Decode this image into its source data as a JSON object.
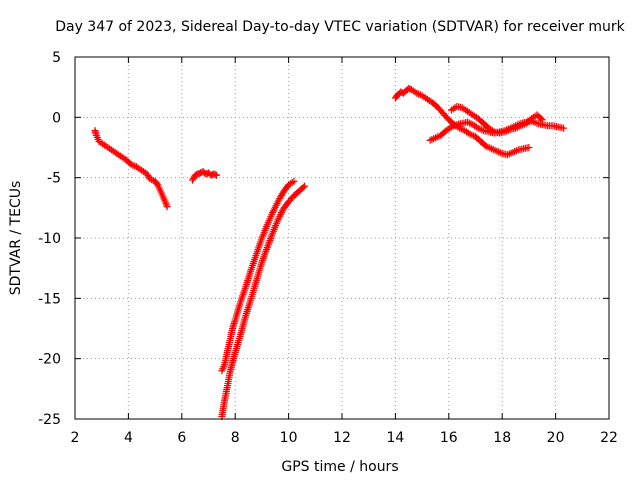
{
  "chart_data": {
    "type": "scatter",
    "title": "Day 347 of 2023, Sidereal Day-to-day VTEC variation (SDTVAR) for receiver murk",
    "xlabel": "GPS time / hours",
    "ylabel": "SDTVAR / TECUs",
    "xlim": [
      2,
      22
    ],
    "ylim": [
      -25,
      5
    ],
    "xticks": [
      2,
      4,
      6,
      8,
      10,
      12,
      14,
      16,
      18,
      20,
      22
    ],
    "yticks": [
      5,
      0,
      -5,
      -10,
      -15,
      -20,
      -25
    ],
    "grid": true,
    "marker": "plus",
    "color": "#ff0000",
    "series": [
      {
        "name": "segment-1",
        "x": [
          2.75,
          2.8,
          2.9,
          3.1,
          3.3,
          3.5,
          3.7,
          3.9,
          4.1,
          4.3,
          4.5,
          4.7,
          4.8,
          5.0,
          5.1,
          5.2,
          5.3,
          5.4,
          5.45
        ],
        "y": [
          -1.1,
          -1.5,
          -2.0,
          -2.3,
          -2.6,
          -2.9,
          -3.2,
          -3.5,
          -3.9,
          -4.1,
          -4.4,
          -4.7,
          -5.1,
          -5.3,
          -5.6,
          -6.1,
          -6.6,
          -7.1,
          -7.4
        ]
      },
      {
        "name": "segment-2",
        "x": [
          6.4,
          6.5,
          6.6,
          6.7,
          6.8,
          6.9,
          7.0,
          7.1,
          7.2,
          7.3
        ],
        "y": [
          -5.2,
          -4.8,
          -4.7,
          -4.6,
          -4.5,
          -4.7,
          -4.6,
          -4.8,
          -4.7,
          -4.8
        ]
      },
      {
        "name": "segment-3",
        "x": [
          7.5,
          7.6,
          7.7,
          7.8,
          7.9,
          8.0,
          8.2,
          8.4,
          8.6,
          8.8,
          9.0,
          9.2,
          9.4,
          9.6,
          9.8,
          10.0,
          10.2
        ],
        "y": [
          -21.0,
          -20.5,
          -19.5,
          -18.5,
          -17.5,
          -16.8,
          -15.3,
          -14.0,
          -12.6,
          -11.3,
          -10.0,
          -8.9,
          -7.9,
          -7.0,
          -6.2,
          -5.6,
          -5.3
        ]
      },
      {
        "name": "segment-4",
        "x": [
          7.5,
          7.6,
          7.7,
          7.8,
          7.9,
          8.0,
          8.2,
          8.4,
          8.6,
          8.8,
          9.0,
          9.2,
          9.4,
          9.6,
          9.8,
          10.0,
          10.2,
          10.4,
          10.6
        ],
        "y": [
          -24.8,
          -23.5,
          -22.4,
          -21.2,
          -20.3,
          -19.5,
          -18.0,
          -16.4,
          -15.0,
          -13.5,
          -12.0,
          -10.8,
          -9.6,
          -8.5,
          -7.6,
          -7.0,
          -6.5,
          -6.1,
          -5.7
        ]
      },
      {
        "name": "segment-5",
        "x": [
          14.0,
          14.1,
          14.2,
          14.3,
          14.4,
          14.5,
          14.6,
          14.8,
          15.0,
          15.2,
          15.4,
          15.6,
          15.8,
          16.0,
          16.2,
          16.4,
          16.6,
          16.8,
          17.0,
          17.2,
          17.4,
          17.6,
          17.8,
          18.0,
          18.2,
          18.4,
          18.6,
          18.8,
          19.0
        ],
        "y": [
          1.6,
          1.9,
          2.1,
          2.0,
          2.2,
          2.4,
          2.3,
          2.0,
          1.8,
          1.5,
          1.2,
          0.8,
          0.3,
          -0.2,
          -0.6,
          -0.9,
          -1.1,
          -1.4,
          -1.6,
          -2.0,
          -2.4,
          -2.6,
          -2.8,
          -3.0,
          -3.1,
          -2.9,
          -2.7,
          -2.6,
          -2.5
        ]
      },
      {
        "name": "segment-6",
        "x": [
          15.3,
          15.5,
          15.7,
          15.9,
          16.1,
          16.3,
          16.5,
          16.7,
          16.9,
          17.1,
          17.3,
          17.5,
          17.7,
          17.9,
          18.1,
          18.3,
          18.5,
          18.7,
          18.9,
          19.1,
          19.3,
          19.5,
          19.7,
          19.9,
          20.1,
          20.3
        ],
        "y": [
          -1.9,
          -1.7,
          -1.5,
          -1.1,
          -0.8,
          -0.6,
          -0.5,
          -0.4,
          -0.6,
          -0.9,
          -1.1,
          -1.2,
          -1.3,
          -1.2,
          -1.1,
          -0.9,
          -0.7,
          -0.5,
          -0.4,
          -0.3,
          -0.5,
          -0.6,
          -0.7,
          -0.7,
          -0.8,
          -0.9
        ]
      },
      {
        "name": "segment-7",
        "x": [
          16.1,
          16.3,
          16.5,
          16.7,
          16.9,
          17.1,
          17.3,
          17.5,
          17.7,
          17.9,
          18.1,
          18.3,
          18.5,
          18.7,
          18.9,
          19.1,
          19.3,
          19.5
        ],
        "y": [
          0.6,
          0.9,
          0.8,
          0.5,
          0.2,
          -0.1,
          -0.5,
          -0.9,
          -1.2,
          -1.3,
          -1.2,
          -1.0,
          -0.9,
          -0.7,
          -0.5,
          -0.1,
          0.2,
          -0.2
        ]
      }
    ]
  }
}
